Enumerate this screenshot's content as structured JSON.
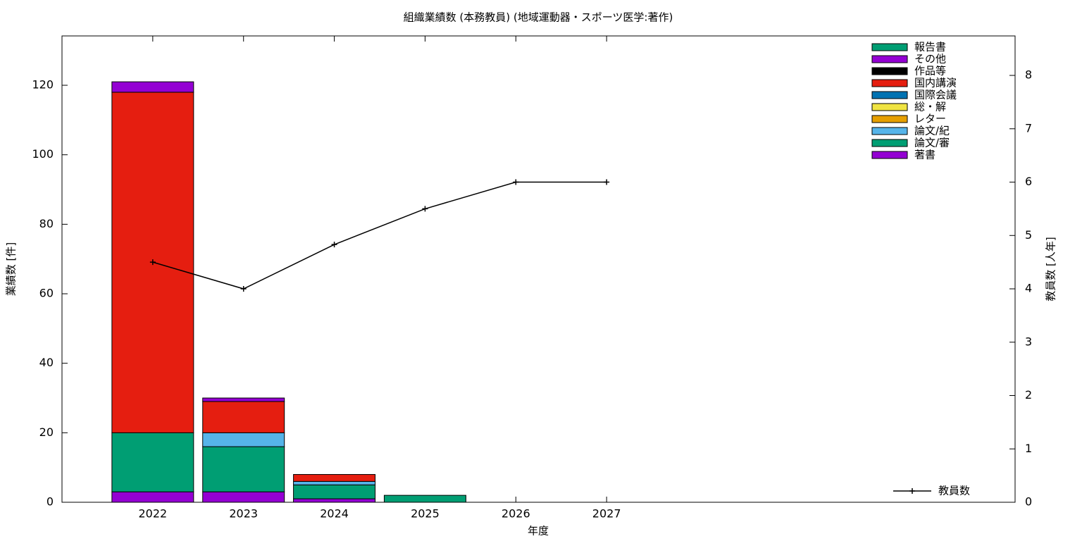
{
  "chart_data": {
    "type": "stacked-bar-line",
    "title": "組織業績数 (本務教員) (地域運動器・スポーツ医学:著作)",
    "x_label": "年度",
    "y_label": "業績数 [件]",
    "y2_label": "教員数 [人年]",
    "x": [
      2022,
      2023,
      2024,
      2025,
      2026,
      2027
    ],
    "xlim": [
      2021,
      2031.5
    ],
    "xticks": [
      2022,
      2023,
      2024,
      2025,
      2026,
      2027
    ],
    "ylim": [
      0,
      134.2
    ],
    "yticks": [
      0,
      20,
      40,
      60,
      80,
      100,
      120
    ],
    "y2lim": [
      0,
      8.74
    ],
    "y2ticks": [
      0,
      1,
      2,
      3,
      4,
      5,
      6,
      7,
      8
    ],
    "series": [
      {
        "name": "著書",
        "color": "#9400d3",
        "values": [
          3,
          3,
          1,
          0,
          0,
          0
        ]
      },
      {
        "name": "論文/審",
        "color": "#009e73",
        "values": [
          17,
          13,
          4,
          2,
          0,
          0
        ]
      },
      {
        "name": "論文/紀",
        "color": "#56b4e9",
        "values": [
          0,
          4,
          1,
          0,
          0,
          0
        ]
      },
      {
        "name": "レター",
        "color": "#e69f00",
        "values": [
          0,
          0,
          0,
          0,
          0,
          0
        ]
      },
      {
        "name": "総・解",
        "color": "#f0e442",
        "values": [
          0,
          0,
          0,
          0,
          0,
          0
        ]
      },
      {
        "name": "国際会議",
        "color": "#0072b2",
        "values": [
          0,
          0,
          0,
          0,
          0,
          0
        ]
      },
      {
        "name": "国内講演",
        "color": "#e51e10",
        "values": [
          98,
          9,
          2,
          0,
          0,
          0
        ]
      },
      {
        "name": "作品等",
        "color": "#000000",
        "values": [
          0,
          0,
          0,
          0,
          0,
          0
        ]
      },
      {
        "name": "その他",
        "color": "#9400d3",
        "values": [
          3,
          1,
          0,
          0,
          0,
          0
        ]
      },
      {
        "name": "報告書",
        "color": "#009e73",
        "values": [
          0,
          0,
          0,
          0,
          0,
          0
        ]
      },
      {
        "name": "教員数",
        "color": "#000000",
        "axis": "y2",
        "type": "line",
        "values": [
          4.5,
          4.0,
          4.83,
          5.5,
          6.0,
          6.0
        ]
      }
    ]
  }
}
